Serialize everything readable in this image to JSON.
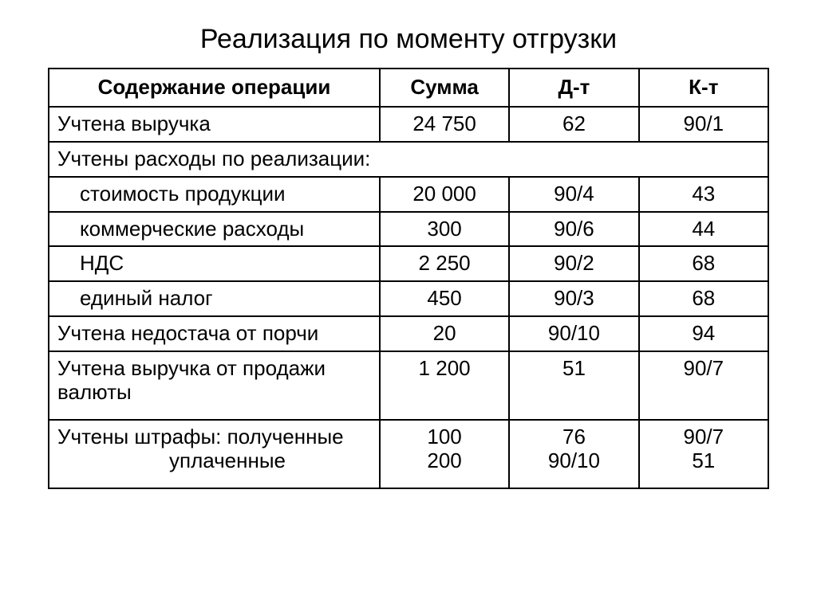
{
  "title": "Реализация по моменту отгрузки",
  "table": {
    "type": "table",
    "border_color": "#000000",
    "background_color": "#ffffff",
    "header_fontsize": 26,
    "cell_fontsize": 26,
    "columns": [
      {
        "key": "op",
        "label": "Содержание операции",
        "align": "left",
        "width_pct": 46
      },
      {
        "key": "sum",
        "label": "Сумма",
        "align": "center",
        "width_pct": 18
      },
      {
        "key": "dt",
        "label": "Д-т",
        "align": "center",
        "width_pct": 18
      },
      {
        "key": "kt",
        "label": "К-т",
        "align": "center",
        "width_pct": 18
      }
    ],
    "rows": [
      {
        "op": "Учтена выручка",
        "sum": "24 750",
        "dt": "62",
        "kt": "90/1"
      },
      {
        "span": true,
        "op": "Учтены расходы по реализации:"
      },
      {
        "op_indent": 1,
        "op": "стоимость продукции",
        "sum": "20 000",
        "dt": "90/4",
        "kt": "43"
      },
      {
        "op_indent": 1,
        "op": "коммерческие расходы",
        "sum": "300",
        "dt": "90/6",
        "kt": "44"
      },
      {
        "op_indent": 1,
        "op": "НДС",
        "sum": "2 250",
        "dt": "90/2",
        "kt": "68"
      },
      {
        "op_indent": 1,
        "op": "единый налог",
        "sum": "450",
        "dt": "90/3",
        "kt": "68"
      },
      {
        "op": "Учтена недостача от порчи",
        "sum": "20",
        "dt": "90/10",
        "kt": "94"
      },
      {
        "tall": true,
        "op": "Учтена выручка от продажи валюты",
        "sum": "1 200",
        "dt": "51",
        "kt": "90/7"
      },
      {
        "tall": true,
        "op_lines": [
          "Учтены штрафы: полученные",
          "уплаченные"
        ],
        "op_line2_indent": 2,
        "sum_lines": [
          "100",
          "200"
        ],
        "dt_lines": [
          "76",
          "90/10"
        ],
        "kt_lines": [
          "90/7",
          "51"
        ]
      }
    ]
  }
}
